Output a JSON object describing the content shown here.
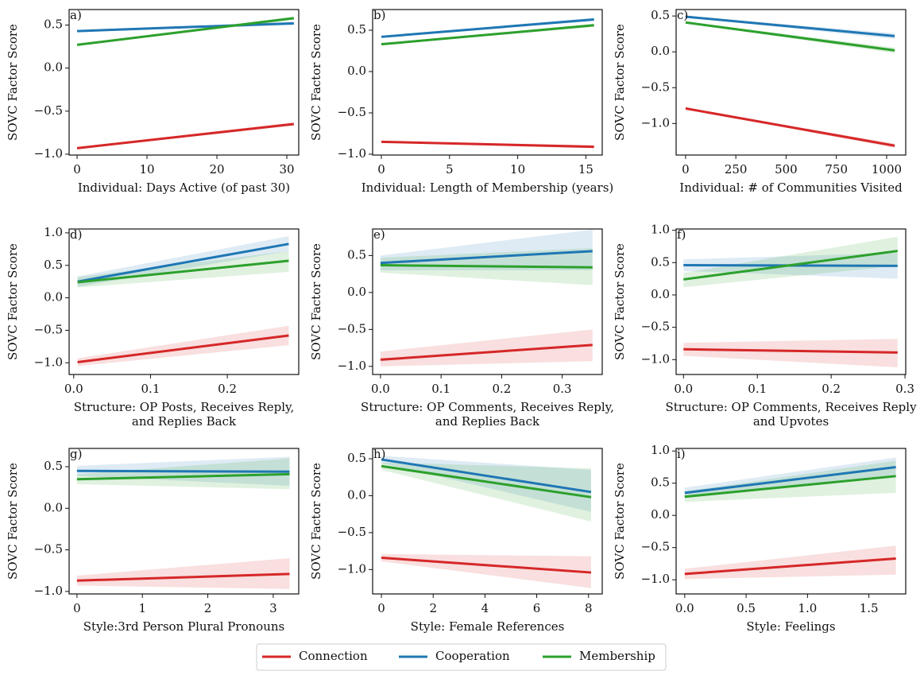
{
  "legend": [
    {
      "name": "Connection",
      "color": "#d62728"
    },
    {
      "name": "Cooperation",
      "color": "#1f77b4"
    },
    {
      "name": "Membership",
      "color": "#2ca02c"
    }
  ],
  "chart_data": [
    {
      "type": "line",
      "label": "a)",
      "ylabel": "SOVC Factor Score",
      "xlabel": [
        "Individual: Days Active (of past 30)"
      ],
      "x": [
        0,
        31
      ],
      "xlim": [
        -1.14,
        31.7
      ],
      "ylim": [
        -1.01,
        0.68
      ],
      "xticks": [
        0,
        10,
        20,
        30
      ],
      "yticks": [
        {
          "value": -1,
          "label": "−1.0"
        },
        {
          "value": -0.5,
          "label": "−0.5"
        },
        {
          "value": 0,
          "label": "0.0"
        },
        0.5
      ],
      "series": [
        {
          "values": [
            -0.93,
            -0.65
          ],
          "lower": [
            -0.94,
            -0.67
          ],
          "upper": [
            -0.92,
            -0.63
          ]
        },
        {
          "values": [
            0.43,
            0.52
          ],
          "lower": [
            0.42,
            0.5
          ],
          "upper": [
            0.44,
            0.54
          ]
        },
        {
          "values": [
            0.27,
            0.58
          ],
          "lower": [
            0.26,
            0.56
          ],
          "upper": [
            0.28,
            0.6
          ]
        }
      ]
    },
    {
      "type": "line",
      "label": "b)",
      "ylabel": "SOVC Factor Score",
      "xlabel": [
        "Individual: Length of Membership (years)"
      ],
      "x": [
        0,
        15.6
      ],
      "xlim": [
        -0.64,
        16.2
      ],
      "ylim": [
        -1.01,
        0.75
      ],
      "xticks": [
        0,
        5,
        10,
        15
      ],
      "yticks": [
        {
          "value": -1,
          "label": "−1.0"
        },
        {
          "value": -0.5,
          "label": "−0.5"
        },
        {
          "value": 0,
          "label": "0.0"
        },
        0.5
      ],
      "series": [
        {
          "values": [
            -0.85,
            -0.91
          ],
          "lower": [
            -0.86,
            -0.93
          ],
          "upper": [
            -0.84,
            -0.89
          ]
        },
        {
          "values": [
            0.42,
            0.63
          ],
          "lower": [
            0.41,
            0.61
          ],
          "upper": [
            0.43,
            0.65
          ]
        },
        {
          "values": [
            0.33,
            0.56
          ],
          "lower": [
            0.32,
            0.54
          ],
          "upper": [
            0.34,
            0.58
          ]
        }
      ]
    },
    {
      "type": "line",
      "label": "c)",
      "ylabel": "SOVC Factor Score",
      "xlabel": [
        "Individual: # of Communities Visited"
      ],
      "x": [
        0,
        1040
      ],
      "xlim": [
        -47,
        1095
      ],
      "ylim": [
        -1.44,
        0.59
      ],
      "xticks": [
        0,
        250,
        500,
        750,
        1000
      ],
      "yticks": [
        {
          "value": -1,
          "label": "−1.0"
        },
        {
          "value": -0.5,
          "label": "−0.5"
        },
        {
          "value": 0,
          "label": "0.0"
        },
        0.5
      ],
      "series": [
        {
          "values": [
            -0.79,
            -1.31
          ],
          "lower": [
            -0.8,
            -1.34
          ],
          "upper": [
            -0.78,
            -1.28
          ]
        },
        {
          "values": [
            0.49,
            0.22
          ],
          "lower": [
            0.48,
            0.18
          ],
          "upper": [
            0.5,
            0.26
          ]
        },
        {
          "values": [
            0.41,
            0.02
          ],
          "lower": [
            0.4,
            -0.02
          ],
          "upper": [
            0.42,
            0.06
          ]
        }
      ]
    },
    {
      "type": "line",
      "label": "d)",
      "ylabel": "SOVC Factor Score",
      "xlabel": [
        "Structure: OP Posts, Receives Reply,",
        "and Replies Back"
      ],
      "x": [
        0.005,
        0.28
      ],
      "xlim": [
        -0.006,
        0.293
      ],
      "ylim": [
        -1.18,
        1.06
      ],
      "xticks": [
        {
          "value": 0,
          "label": "0.0"
        },
        0.1,
        0.2
      ],
      "yticks": [
        {
          "value": -1,
          "label": "−1.0"
        },
        {
          "value": -0.5,
          "label": "−0.5"
        },
        {
          "value": 0,
          "label": "0.0"
        },
        0.5,
        {
          "value": 1,
          "label": "1.0"
        }
      ],
      "series": [
        {
          "values": [
            -0.99,
            -0.58
          ],
          "lower": [
            -1.05,
            -0.73
          ],
          "upper": [
            -0.93,
            -0.43
          ]
        },
        {
          "values": [
            0.25,
            0.83
          ],
          "lower": [
            0.17,
            0.72
          ],
          "upper": [
            0.33,
            0.95
          ]
        },
        {
          "values": [
            0.24,
            0.57
          ],
          "lower": [
            0.16,
            0.4
          ],
          "upper": [
            0.32,
            0.72
          ]
        }
      ]
    },
    {
      "type": "line",
      "label": "e)",
      "ylabel": "SOVC Factor Score",
      "xlabel": [
        "Structure: OP Comments, Receives Reply,",
        "and Replies Back"
      ],
      "x": [
        0,
        0.35
      ],
      "xlim": [
        -0.013,
        0.366
      ],
      "ylim": [
        -1.11,
        0.86
      ],
      "xticks": [
        {
          "value": 0,
          "label": "0.0"
        },
        0.1,
        0.2,
        0.3
      ],
      "yticks": [
        {
          "value": -1,
          "label": "−1.0"
        },
        {
          "value": -0.5,
          "label": "−0.5"
        },
        {
          "value": 0,
          "label": "0.0"
        },
        0.5
      ],
      "series": [
        {
          "values": [
            -0.91,
            -0.71
          ],
          "lower": [
            -1.0,
            -0.93
          ],
          "upper": [
            -0.8,
            -0.5
          ]
        },
        {
          "values": [
            0.4,
            0.56
          ],
          "lower": [
            0.3,
            0.3
          ],
          "upper": [
            0.5,
            0.85
          ]
        },
        {
          "values": [
            0.37,
            0.34
          ],
          "lower": [
            0.27,
            0.1
          ],
          "upper": [
            0.47,
            0.6
          ]
        }
      ]
    },
    {
      "type": "line",
      "label": "f)",
      "ylabel": "SOVC Factor Score",
      "xlabel": [
        "Structure: OP Comments, Receives Reply",
        "and Upvotes"
      ],
      "x": [
        0,
        0.29
      ],
      "xlim": [
        -0.01,
        0.301
      ],
      "ylim": [
        -1.23,
        1.02
      ],
      "xticks": [
        {
          "value": 0,
          "label": "0.0"
        },
        0.1,
        0.2,
        0.3
      ],
      "yticks": [
        {
          "value": -1,
          "label": "−1.0"
        },
        {
          "value": -0.5,
          "label": "−0.5"
        },
        {
          "value": 0,
          "label": "0.0"
        },
        0.5,
        {
          "value": 1,
          "label": "1.0"
        }
      ],
      "series": [
        {
          "values": [
            -0.84,
            -0.89
          ],
          "lower": [
            -0.94,
            -1.12
          ],
          "upper": [
            -0.74,
            -0.68
          ]
        },
        {
          "values": [
            0.46,
            0.45
          ],
          "lower": [
            0.37,
            0.25
          ],
          "upper": [
            0.55,
            0.65
          ]
        },
        {
          "values": [
            0.24,
            0.68
          ],
          "lower": [
            0.12,
            0.45
          ],
          "upper": [
            0.34,
            0.9
          ]
        }
      ]
    },
    {
      "type": "line",
      "label": "g)",
      "ylabel": "SOVC Factor Score",
      "xlabel": [
        "Style:3rd Person Plural Pronouns"
      ],
      "x": [
        0,
        3.25
      ],
      "xlim": [
        -0.12,
        3.39
      ],
      "ylim": [
        -1.03,
        0.72
      ],
      "xticks": [
        0,
        1,
        2,
        3
      ],
      "yticks": [
        {
          "value": -1,
          "label": "−1.0"
        },
        {
          "value": -0.5,
          "label": "−0.5"
        },
        {
          "value": 0,
          "label": "0.0"
        },
        0.5
      ],
      "series": [
        {
          "values": [
            -0.87,
            -0.79
          ],
          "lower": [
            -0.93,
            -0.97
          ],
          "upper": [
            -0.81,
            -0.6
          ]
        },
        {
          "values": [
            0.45,
            0.44
          ],
          "lower": [
            0.39,
            0.27
          ],
          "upper": [
            0.51,
            0.62
          ]
        },
        {
          "values": [
            0.35,
            0.41
          ],
          "lower": [
            0.29,
            0.23
          ],
          "upper": [
            0.41,
            0.6
          ]
        }
      ]
    },
    {
      "type": "line",
      "label": "h)",
      "ylabel": "SOVC Factor Score",
      "xlabel": [
        "Style: Female References"
      ],
      "x": [
        0,
        8.1
      ],
      "xlim": [
        -0.34,
        8.53
      ],
      "ylim": [
        -1.33,
        0.64
      ],
      "xticks": [
        0,
        2,
        4,
        6,
        8
      ],
      "yticks": [
        {
          "value": -1,
          "label": "−1.0"
        },
        {
          "value": -0.5,
          "label": "−0.5"
        },
        {
          "value": 0,
          "label": "0.0"
        },
        0.5
      ],
      "series": [
        {
          "values": [
            -0.84,
            -1.04
          ],
          "lower": [
            -0.89,
            -1.25
          ],
          "upper": [
            -0.79,
            -0.82
          ]
        },
        {
          "values": [
            0.49,
            0.05
          ],
          "lower": [
            0.44,
            -0.22
          ],
          "upper": [
            0.54,
            0.35
          ]
        },
        {
          "values": [
            0.4,
            -0.02
          ],
          "lower": [
            0.35,
            -0.35
          ],
          "upper": [
            0.45,
            0.37
          ]
        }
      ]
    },
    {
      "type": "line",
      "label": "i)",
      "ylabel": "SOVC Factor Score",
      "xlabel": [
        "Style: Feelings"
      ],
      "x": [
        0,
        1.72
      ],
      "xlim": [
        -0.07,
        1.8
      ],
      "ylim": [
        -1.22,
        1.04
      ],
      "xticks": [
        {
          "value": 0,
          "label": "0.0"
        },
        0.5,
        {
          "value": 1,
          "label": "1.0"
        },
        1.5
      ],
      "yticks": [
        {
          "value": -1,
          "label": "−1.0"
        },
        {
          "value": -0.5,
          "label": "−0.5"
        },
        {
          "value": 0,
          "label": "0.0"
        },
        0.5,
        {
          "value": 1,
          "label": "1.0"
        }
      ],
      "series": [
        {
          "values": [
            -0.91,
            -0.67
          ],
          "lower": [
            -0.99,
            -0.92
          ],
          "upper": [
            -0.83,
            -0.47
          ]
        },
        {
          "values": [
            0.35,
            0.75
          ],
          "lower": [
            0.27,
            0.6
          ],
          "upper": [
            0.43,
            0.9
          ]
        },
        {
          "values": [
            0.29,
            0.61
          ],
          "lower": [
            0.21,
            0.35
          ],
          "upper": [
            0.37,
            0.85
          ]
        }
      ]
    }
  ]
}
